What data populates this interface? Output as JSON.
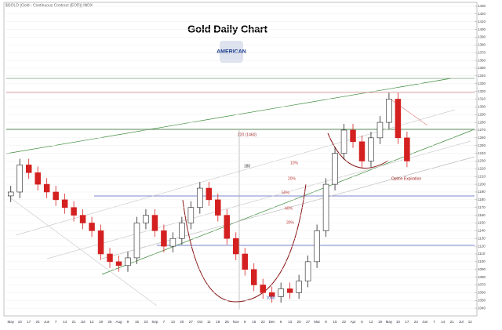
{
  "chart_data": {
    "type": "candlestick",
    "header": "$GOLD (Gold - Continuous Contract (EOD)) INDX",
    "title": "Gold Daily Chart",
    "logo": "AMERICAN",
    "annotations": [
      "220 (1460)",
      "180",
      "1050",
      "10%",
      "20%",
      "30%",
      "40%",
      "50%",
      "Option Expiration"
    ],
    "categories": [
      "May",
      "10",
      "17",
      "24",
      "Jun",
      "7",
      "14",
      "21",
      "Jul",
      "12",
      "19",
      "26",
      "Aug",
      "9",
      "16",
      "23",
      "Sep",
      "7",
      "13",
      "20",
      "27",
      "Oct",
      "11",
      "18",
      "25",
      "Nov",
      "8",
      "15",
      "22",
      "Dec",
      "6",
      "13",
      "20",
      "27",
      "Mar",
      "8",
      "15",
      "22",
      "Apr",
      "6",
      "12",
      "19",
      "May",
      "10",
      "17",
      "24",
      "Jun",
      "7",
      "14",
      "21",
      "Jul",
      "12"
    ],
    "open": [
      1185,
      1190,
      1225,
      1215,
      1200,
      1190,
      1180,
      1170,
      1160,
      1150,
      1140,
      1110,
      1100,
      1095,
      1105,
      1150,
      1160,
      1140,
      1120,
      1130,
      1150,
      1170,
      1195,
      1180,
      1160,
      1130,
      1110,
      1090,
      1070,
      1060,
      1055,
      1065,
      1060,
      1075,
      1100,
      1140,
      1200,
      1240,
      1270,
      1255,
      1230,
      1260,
      1280,
      1310,
      1260,
      null,
      null,
      null,
      null,
      null,
      null,
      null
    ],
    "high": [
      1198,
      1233,
      1233,
      1223,
      1208,
      1198,
      1188,
      1178,
      1168,
      1158,
      1148,
      1118,
      1108,
      1113,
      1158,
      1168,
      1168,
      1148,
      1138,
      1158,
      1178,
      1203,
      1203,
      1188,
      1168,
      1138,
      1118,
      1098,
      1078,
      1068,
      1073,
      1073,
      1083,
      1108,
      1148,
      1208,
      1248,
      1278,
      1278,
      1263,
      1268,
      1288,
      1318,
      1318,
      1268,
      null,
      null,
      null,
      null,
      null,
      null,
      null
    ],
    "low": [
      1177,
      1182,
      1207,
      1192,
      1182,
      1172,
      1162,
      1152,
      1142,
      1132,
      1102,
      1092,
      1087,
      1087,
      1097,
      1142,
      1132,
      1112,
      1112,
      1122,
      1142,
      1162,
      1172,
      1152,
      1122,
      1102,
      1082,
      1062,
      1052,
      1047,
      1047,
      1052,
      1052,
      1067,
      1092,
      1132,
      1192,
      1232,
      1247,
      1222,
      1222,
      1252,
      1272,
      1252,
      1222,
      null,
      null,
      null,
      null,
      null,
      null,
      null
    ],
    "close": [
      1190,
      1225,
      1215,
      1200,
      1190,
      1180,
      1170,
      1160,
      1150,
      1140,
      1110,
      1100,
      1095,
      1105,
      1150,
      1160,
      1140,
      1120,
      1130,
      1150,
      1170,
      1195,
      1180,
      1160,
      1130,
      1110,
      1090,
      1070,
      1060,
      1055,
      1065,
      1060,
      1075,
      1100,
      1140,
      1200,
      1240,
      1270,
      1255,
      1230,
      1260,
      1280,
      1310,
      1260,
      1230,
      null,
      null,
      null,
      null,
      null,
      null,
      null
    ],
    "up_color": "#222222",
    "down_color": "#d42020",
    "ylim": [
      1030,
      1435
    ],
    "yticks": [
      1040,
      1050,
      1060,
      1070,
      1080,
      1090,
      1100,
      1110,
      1120,
      1130,
      1140,
      1150,
      1160,
      1170,
      1180,
      1190,
      1200,
      1210,
      1220,
      1230,
      1240,
      1250,
      1260,
      1270,
      1280,
      1290,
      1300,
      1310,
      1320,
      1330,
      1340,
      1350,
      1360,
      1370,
      1380,
      1390,
      1400,
      1410,
      1420,
      1430
    ],
    "grid": true
  }
}
